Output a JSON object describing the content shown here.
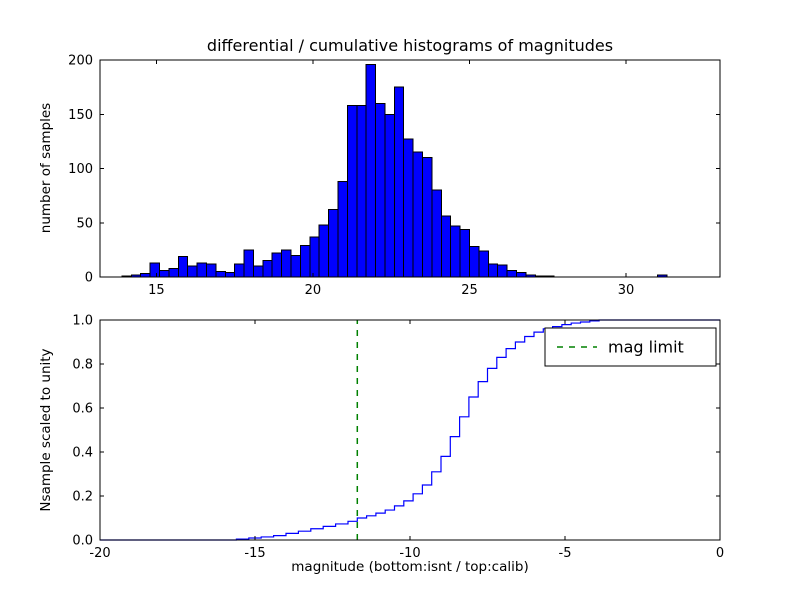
{
  "colors": {
    "hist_fill": "#0000ff",
    "hist_edge": "#000000",
    "cdf_line": "#0000ff",
    "limit_line": "#008000",
    "axis": "#000000",
    "background": "#ffffff"
  },
  "chart_data": [
    {
      "type": "bar",
      "title": "differential / cumulative histograms of magnitudes",
      "ylabel": "number of samples",
      "xlim": [
        13.2,
        33.0
      ],
      "ylim": [
        0,
        200
      ],
      "grid": false,
      "xticks": {
        "values": [
          15,
          20,
          25,
          30
        ],
        "labels": [
          "15",
          "20",
          "25",
          "30"
        ]
      },
      "yticks": {
        "values": [
          0,
          50,
          100,
          150,
          200
        ],
        "labels": [
          "0",
          "50",
          "100",
          "150",
          "200"
        ]
      },
      "bin_start": 13.9,
      "bin_width": 0.3,
      "counts": [
        1,
        2,
        3,
        13,
        6,
        8,
        19,
        10,
        13,
        12,
        5,
        4,
        12,
        25,
        10,
        15,
        22,
        25,
        20,
        29,
        37,
        48,
        62,
        88,
        158,
        158,
        196,
        160,
        150,
        175,
        127,
        115,
        110,
        80,
        56,
        47,
        44,
        28,
        24,
        12,
        11,
        6,
        4,
        2,
        1,
        1,
        0,
        0,
        0,
        0,
        0,
        0,
        0,
        0,
        0,
        0,
        0,
        2
      ]
    },
    {
      "type": "line",
      "ylabel": "Nsample scaled to unity",
      "xlabel": "magnitude (bottom:isnt / top:calib)",
      "xlim": [
        -20,
        0
      ],
      "ylim": [
        0,
        1
      ],
      "grid": false,
      "xticks": {
        "values": [
          -20,
          -15,
          -10,
          -5,
          0
        ],
        "labels": [
          "-20",
          "-15",
          "-10",
          "-5",
          "0"
        ]
      },
      "yticks": {
        "values": [
          0,
          0.2,
          0.4,
          0.6,
          0.8,
          1.0
        ],
        "labels": [
          "0.0",
          "0.2",
          "0.4",
          "0.6",
          "0.8",
          "1.0"
        ]
      },
      "mag_limit_x": -11.7,
      "legend": {
        "label": "mag limit",
        "position": "upper right"
      },
      "steps": [
        [
          -20,
          0
        ],
        [
          -15.6,
          0.004
        ],
        [
          -15.2,
          0.009
        ],
        [
          -14.8,
          0.014
        ],
        [
          -14.4,
          0.02
        ],
        [
          -14.0,
          0.03
        ],
        [
          -13.6,
          0.04
        ],
        [
          -13.2,
          0.051
        ],
        [
          -12.8,
          0.062
        ],
        [
          -12.4,
          0.073
        ],
        [
          -12.0,
          0.085
        ],
        [
          -11.7,
          0.1
        ],
        [
          -11.4,
          0.11
        ],
        [
          -11.1,
          0.122
        ],
        [
          -10.8,
          0.136
        ],
        [
          -10.5,
          0.155
        ],
        [
          -10.2,
          0.178
        ],
        [
          -9.9,
          0.21
        ],
        [
          -9.6,
          0.25
        ],
        [
          -9.3,
          0.31
        ],
        [
          -9.0,
          0.38
        ],
        [
          -8.7,
          0.47
        ],
        [
          -8.4,
          0.56
        ],
        [
          -8.1,
          0.65
        ],
        [
          -7.8,
          0.72
        ],
        [
          -7.5,
          0.78
        ],
        [
          -7.2,
          0.83
        ],
        [
          -6.9,
          0.87
        ],
        [
          -6.6,
          0.9
        ],
        [
          -6.3,
          0.925
        ],
        [
          -6.0,
          0.945
        ],
        [
          -5.7,
          0.96
        ],
        [
          -5.4,
          0.97
        ],
        [
          -5.1,
          0.979
        ],
        [
          -4.8,
          0.986
        ],
        [
          -4.5,
          0.991
        ],
        [
          -4.2,
          0.996
        ],
        [
          -3.9,
          1.0
        ]
      ]
    }
  ]
}
